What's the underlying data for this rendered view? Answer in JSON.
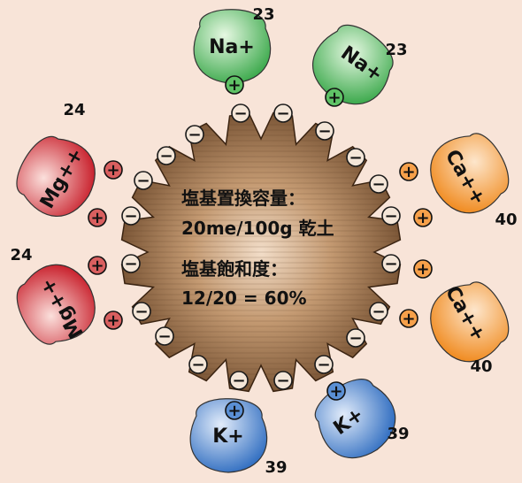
{
  "center": {
    "line1": "塩基置換容量：",
    "line2": "20me/100g 乾土",
    "line3": "塩基飽和度：",
    "line4": "12/20 = 60%"
  },
  "ions": [
    {
      "label": "Na+",
      "mass": "23",
      "color": "#5fc266"
    },
    {
      "label": "Na+",
      "mass": "23",
      "color": "#5fc266"
    },
    {
      "label": "Ca++",
      "mass": "40",
      "color": "#f6a04a"
    },
    {
      "label": "Ca++",
      "mass": "40",
      "color": "#f6a04a"
    },
    {
      "label": "K+",
      "mass": "39",
      "color": "#5a8fd4"
    },
    {
      "label": "K+",
      "mass": "39",
      "color": "#5a8fd4"
    },
    {
      "label": "Mg++",
      "mass": "24",
      "color": "#d95f5f"
    },
    {
      "label": "Mg++",
      "mass": "24",
      "color": "#d95f5f"
    }
  ],
  "charges": {
    "negative": "−",
    "positive": "+"
  }
}
